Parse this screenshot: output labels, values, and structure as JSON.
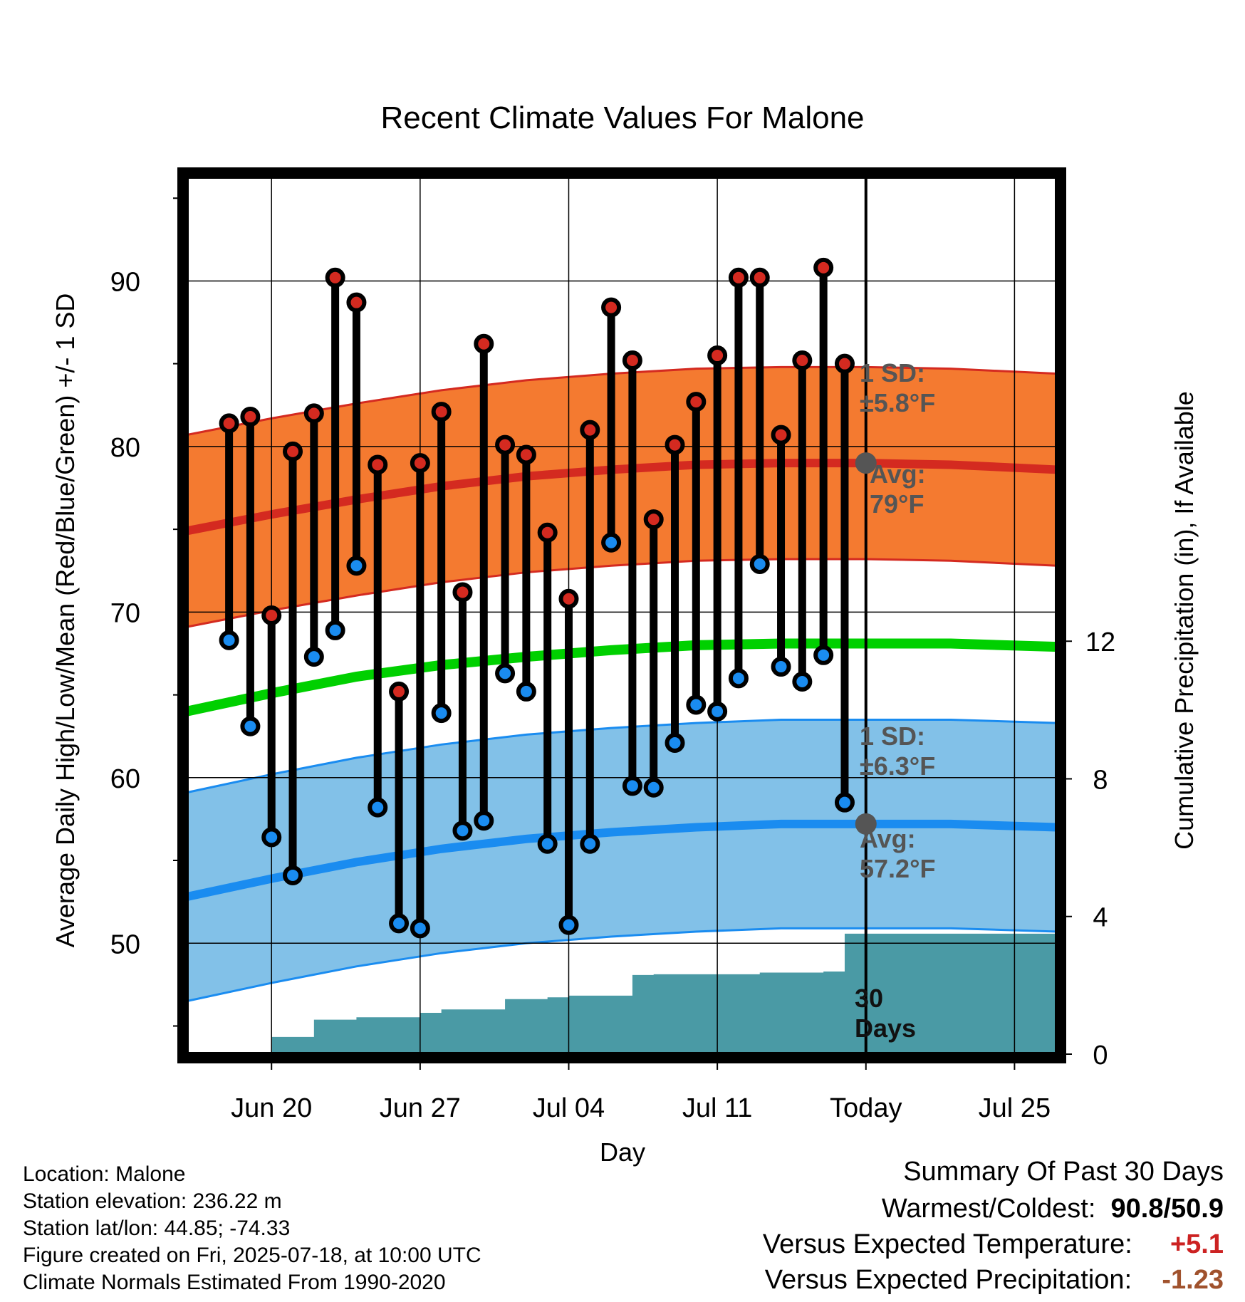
{
  "chart_data": {
    "type": "line",
    "title": "Recent Climate Values For Malone",
    "xlabel": "Day",
    "ylabel": "Average Daily High/Low/Mean (Red/Blue/Green) +/- 1 SD",
    "y2label": "Cumulative Precipitation (in), If Available",
    "x_tick_labels": [
      {
        "date": "2025-06-20",
        "label": "Jun 20"
      },
      {
        "date": "2025-06-27",
        "label": "Jun 27"
      },
      {
        "date": "2025-07-04",
        "label": "Jul 04"
      },
      {
        "date": "2025-07-11",
        "label": "Jul 11"
      },
      {
        "date": "2025-07-18",
        "label": "Today"
      },
      {
        "date": "2025-07-25",
        "label": "Jul 25"
      }
    ],
    "xlim": [
      "2025-06-16",
      "2025-07-27"
    ],
    "ylim": [
      43.3,
      96.3
    ],
    "y_ticks": [
      50,
      60,
      70,
      80,
      90
    ],
    "y2lim": [
      0,
      25.5
    ],
    "y2_ticks": [
      0,
      4,
      8,
      12
    ],
    "today": "2025-07-18",
    "grid": true,
    "observed": {
      "dates": [
        "2025-06-18",
        "2025-06-19",
        "2025-06-20",
        "2025-06-21",
        "2025-06-22",
        "2025-06-23",
        "2025-06-24",
        "2025-06-25",
        "2025-06-26",
        "2025-06-27",
        "2025-06-28",
        "2025-06-29",
        "2025-06-30",
        "2025-07-01",
        "2025-07-02",
        "2025-07-03",
        "2025-07-04",
        "2025-07-05",
        "2025-07-06",
        "2025-07-07",
        "2025-07-08",
        "2025-07-09",
        "2025-07-10",
        "2025-07-11",
        "2025-07-12",
        "2025-07-13",
        "2025-07-14",
        "2025-07-15",
        "2025-07-16",
        "2025-07-17"
      ],
      "high": [
        81.4,
        81.8,
        69.8,
        79.7,
        82.0,
        90.2,
        88.7,
        78.9,
        65.2,
        79.0,
        82.1,
        71.2,
        86.2,
        80.1,
        79.5,
        74.8,
        70.8,
        81.0,
        88.4,
        85.2,
        75.6,
        80.1,
        82.7,
        85.5,
        90.2,
        90.2,
        80.7,
        85.2,
        90.8,
        85.0
      ],
      "low": [
        68.3,
        63.1,
        56.4,
        54.1,
        67.3,
        68.9,
        72.8,
        58.2,
        51.2,
        50.9,
        63.9,
        56.8,
        57.4,
        66.3,
        65.2,
        56.0,
        51.1,
        56.0,
        74.2,
        59.5,
        59.4,
        62.1,
        64.4,
        64.0,
        66.0,
        72.9,
        66.7,
        65.8,
        67.4,
        58.5
      ]
    },
    "normals": {
      "dates": [
        "2025-06-16",
        "2025-06-20",
        "2025-06-24",
        "2025-06-28",
        "2025-07-02",
        "2025-07-06",
        "2025-07-10",
        "2025-07-14",
        "2025-07-18",
        "2025-07-22",
        "2025-07-27"
      ],
      "avg_high": [
        74.9,
        75.9,
        76.8,
        77.6,
        78.2,
        78.6,
        78.9,
        79.0,
        79.0,
        78.9,
        78.6
      ],
      "avg_low": [
        52.8,
        53.9,
        54.9,
        55.7,
        56.3,
        56.7,
        57.0,
        57.2,
        57.2,
        57.2,
        57.0
      ],
      "avg_mean": [
        64.0,
        65.1,
        66.1,
        66.8,
        67.3,
        67.7,
        68.0,
        68.1,
        68.1,
        68.1,
        67.9
      ],
      "high_sd": 5.8,
      "low_sd": 6.3
    },
    "precipitation": {
      "dates": [
        "2025-06-18",
        "2025-06-19",
        "2025-06-20",
        "2025-06-21",
        "2025-06-22",
        "2025-06-23",
        "2025-06-24",
        "2025-06-25",
        "2025-06-26",
        "2025-06-27",
        "2025-06-28",
        "2025-06-29",
        "2025-06-30",
        "2025-07-01",
        "2025-07-02",
        "2025-07-03",
        "2025-07-04",
        "2025-07-05",
        "2025-07-06",
        "2025-07-07",
        "2025-07-08",
        "2025-07-09",
        "2025-07-10",
        "2025-07-11",
        "2025-07-12",
        "2025-07-13",
        "2025-07-14",
        "2025-07-15",
        "2025-07-16",
        "2025-07-17",
        "2025-07-18",
        "2025-07-27"
      ],
      "cumulative": [
        0.0,
        0.0,
        0.5,
        0.5,
        1.0,
        1.0,
        1.07,
        1.07,
        1.07,
        1.2,
        1.3,
        1.3,
        1.3,
        1.6,
        1.6,
        1.65,
        1.7,
        1.7,
        1.7,
        2.3,
        2.32,
        2.32,
        2.32,
        2.32,
        2.32,
        2.37,
        2.37,
        2.37,
        2.4,
        3.5,
        3.5,
        3.5
      ]
    },
    "annotations": {
      "high_sd": [
        "1 SD:",
        "±5.8°F"
      ],
      "high_avg": [
        "Avg:",
        "79°F"
      ],
      "low_sd": [
        "1 SD:",
        "±6.3°F"
      ],
      "low_avg": [
        "Avg:",
        "57.2°F"
      ],
      "period": [
        "30",
        "Days"
      ]
    },
    "colors": {
      "high_band": "#f47a30",
      "high_line": "#d42a20",
      "low_band": "#82c1e8",
      "low_line": "#1a8cf0",
      "mean_line": "#00d000",
      "precip": "#4a9aa5",
      "high_point": "#d42a20",
      "low_point": "#1a8cf0",
      "today_marker": "#555555"
    }
  },
  "station": {
    "location": "Location: Malone",
    "elevation": "Station elevation: 236.22 m",
    "latlon": "Station lat/lon: 44.85; -74.33",
    "created": "Figure created on Fri, 2025-07-18, at 10:00 UTC",
    "normals": "Climate Normals Estimated From 1990-2020"
  },
  "summary": {
    "title": "Summary Of Past 30 Days",
    "warmest_label": "Warmest/Coldest:",
    "warmest_value": "90.8/50.9",
    "temp_label": "Versus Expected Temperature:",
    "temp_value": "+5.1",
    "temp_color": "#cc2222",
    "precip_label": "Versus Expected Precipitation:",
    "precip_value": "-1.23",
    "precip_color": "#a0522d"
  }
}
